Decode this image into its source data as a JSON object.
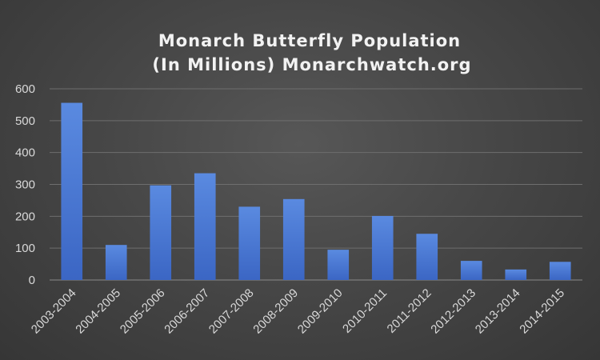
{
  "chart_data": {
    "type": "bar",
    "title_lines": [
      "Monarch Butterfly Population",
      "(In Millions)   Monarchwatch.org"
    ],
    "categories": [
      "2003-2004",
      "2004-2005",
      "2005-2006",
      "2006-2007",
      "2007-2008",
      "2008-2009",
      "2009-2010",
      "2010-2011",
      "2011-2012",
      "2012-2013",
      "2013-2014",
      "2014-2015"
    ],
    "values": [
      556,
      110,
      297,
      335,
      230,
      254,
      95,
      201,
      145,
      60,
      33,
      57
    ],
    "ylim": [
      0,
      600
    ],
    "yticks": [
      0,
      100,
      200,
      300,
      400,
      500,
      600
    ],
    "grid": true,
    "legend": "none",
    "bar_color_top": "#5a8ae0",
    "bar_color_bottom": "#3b66c4",
    "background": "#474747"
  }
}
